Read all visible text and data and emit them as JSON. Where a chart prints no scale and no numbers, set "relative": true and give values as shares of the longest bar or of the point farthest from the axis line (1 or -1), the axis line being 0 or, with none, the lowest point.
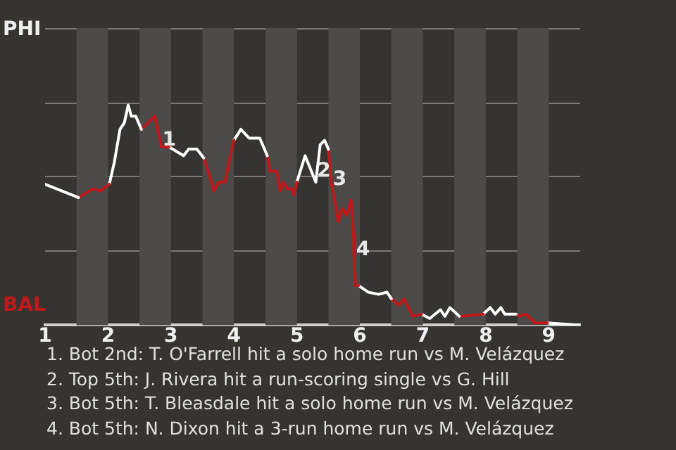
{
  "chart_data": {
    "type": "line",
    "relative": true,
    "xlim": [
      1,
      9.5
    ],
    "xticks": [
      1,
      2,
      3,
      4,
      5,
      6,
      7,
      8,
      9
    ],
    "marker": "none",
    "line_style": "solid",
    "series": [
      {
        "color": "#ffffff",
        "x": [
          1,
          1.53
        ],
        "values": [
          0.64,
          0.58
        ]
      },
      {
        "color": "#c0181a",
        "x": [
          1.53,
          1.76,
          1.88,
          2.02
        ],
        "values": [
          0.58,
          0.62,
          0.61,
          0.64
        ]
      },
      {
        "color": "#ffffff",
        "x": [
          2.02,
          2.1,
          2.19,
          2.26,
          2.32,
          2.37,
          2.44,
          2.53
        ],
        "values": [
          0.64,
          0.74,
          0.89,
          0.92,
          1,
          0.95,
          0.95,
          0.89
        ]
      },
      {
        "color": "#c0181a",
        "x": [
          2.53,
          2.74,
          2.85,
          2.97
        ],
        "values": [
          0.89,
          0.95,
          0.81,
          0.81
        ]
      },
      {
        "color": "#ffffff",
        "x": [
          2.97,
          3.2,
          3.28,
          3.41,
          3.52
        ],
        "values": [
          0.81,
          0.77,
          0.8,
          0.8,
          0.76
        ]
      },
      {
        "color": "#c0181a",
        "x": [
          3.52,
          3.6,
          3.68,
          3.76,
          3.86,
          3.92,
          4
        ],
        "values": [
          0.76,
          0.69,
          0.61,
          0.65,
          0.65,
          0.74,
          0.84
        ]
      },
      {
        "color": "#ffffff",
        "x": [
          4,
          4.11,
          4.24,
          4.41,
          4.53
        ],
        "values": [
          0.84,
          0.89,
          0.85,
          0.85,
          0.77
        ]
      },
      {
        "color": "#c0181a",
        "x": [
          4.53,
          4.57,
          4.68,
          4.73,
          4.78,
          4.84,
          4.92,
          4.95,
          5
        ],
        "values": [
          0.77,
          0.7,
          0.7,
          0.61,
          0.65,
          0.62,
          0.62,
          0.59,
          0.65
        ]
      },
      {
        "color": "#ffffff",
        "x": [
          5,
          5.13,
          5.3,
          5.37,
          5.44,
          5.5
        ],
        "values": [
          0.65,
          0.77,
          0.65,
          0.82,
          0.84,
          0.8
        ]
      },
      {
        "color": "#c0181a",
        "x": [
          5.5,
          5.55,
          5.59,
          5.66,
          5.72,
          5.79,
          5.86,
          5.9,
          5.91,
          5.93,
          5.98
        ],
        "values": [
          0.8,
          0.64,
          0.58,
          0.47,
          0.53,
          0.5,
          0.57,
          0.41,
          0.27,
          0.18,
          0.18
        ]
      },
      {
        "color": "#ffffff",
        "x": [
          5.98,
          6.13,
          6.3,
          6.43,
          6.5
        ],
        "values": [
          0.18,
          0.15,
          0.14,
          0.15,
          0.12
        ]
      },
      {
        "color": "#c0181a",
        "x": [
          6.5,
          6.62,
          6.7,
          6.84,
          6.98
        ],
        "values": [
          0.12,
          0.09,
          0.12,
          0.04,
          0.05
        ]
      },
      {
        "color": "#ffffff",
        "x": [
          6.98,
          7.11,
          7.28,
          7.35,
          7.43,
          7.58
        ],
        "values": [
          0.05,
          0.03,
          0.07,
          0.04,
          0.08,
          0.04
        ]
      },
      {
        "color": "#c0181a",
        "x": [
          7.58,
          7.96
        ],
        "values": [
          0.04,
          0.05
        ]
      },
      {
        "color": "#ffffff",
        "x": [
          7.96,
          8.07,
          8.15,
          8.24,
          8.3,
          8.48
        ],
        "values": [
          0.05,
          0.08,
          0.05,
          0.08,
          0.05,
          0.05
        ]
      },
      {
        "color": "#c0181a",
        "x": [
          8.48,
          8.54,
          8.64,
          8.78,
          8.98
        ],
        "values": [
          0.05,
          0.04,
          0.05,
          0.01,
          0.01
        ]
      },
      {
        "color": "#ffffff",
        "x": [
          8.98,
          9.5
        ],
        "values": [
          0.01,
          0
        ]
      }
    ],
    "ref_lines": [
      {
        "axis": "y",
        "value": 0.34,
        "color": "#7a7977"
      },
      {
        "axis": "y",
        "value": 0.68,
        "color": "#7a7977"
      },
      {
        "axis": "y",
        "value": 1.01,
        "color": "#7a7977"
      },
      {
        "axis": "y",
        "value": 1.35,
        "color": "#7a7977"
      }
    ],
    "bands": [
      {
        "axis": "x",
        "from": 1.5,
        "to": 2,
        "color": "#4c4b49"
      },
      {
        "axis": "x",
        "from": 2.5,
        "to": 3,
        "color": "#4c4b49"
      },
      {
        "axis": "x",
        "from": 3.5,
        "to": 4,
        "color": "#4c4b49"
      },
      {
        "axis": "x",
        "from": 4.5,
        "to": 5,
        "color": "#4c4b49"
      },
      {
        "axis": "x",
        "from": 5.5,
        "to": 6,
        "color": "#4c4b49"
      },
      {
        "axis": "x",
        "from": 6.5,
        "to": 7,
        "color": "#4c4b49"
      },
      {
        "axis": "x",
        "from": 7.5,
        "to": 8,
        "color": "#4c4b49"
      },
      {
        "axis": "x",
        "from": 8.5,
        "to": 9,
        "color": "#4c4b49"
      }
    ],
    "annotations": [
      "PHI",
      "BAL",
      {
        "text": "1",
        "x": 2.97,
        "y": 0.84
      },
      {
        "text": "2",
        "x": 5.43,
        "y": 0.7
      },
      {
        "text": "3",
        "x": 5.68,
        "y": 0.66
      },
      {
        "text": "4",
        "x": 6.05,
        "y": 0.34
      },
      "1. Bot 2nd: T. O'Farrell hit a solo home run vs M. Velázquez",
      "2. Top 5th: J. Rivera hit a run-scoring single vs G. Hill",
      "3. Bot 5th: T. Bleasdale hit a solo home run vs M. Velázquez",
      "4. Bot 5th: N. Dixon hit a 3-run home run vs M. Velázquez"
    ]
  }
}
